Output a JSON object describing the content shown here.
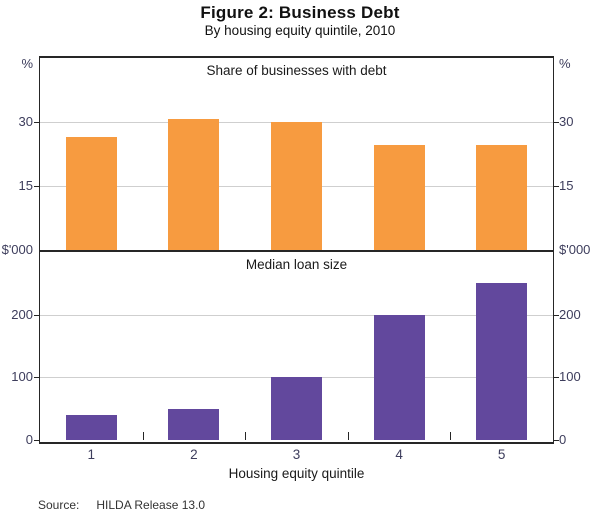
{
  "title": "Figure 2: Business Debt",
  "subtitle": "By housing equity quintile, 2010",
  "xlabel": "Housing equity quintile",
  "source": {
    "label": "Source:",
    "text": "HILDA Release 13.0"
  },
  "colors": {
    "top_bar": "#f79b40",
    "bottom_bar": "#62489d",
    "gridline": "#cfcfcf",
    "frame": "#262626",
    "tick_label": "#3d3d5c"
  },
  "chart_data": [
    {
      "type": "bar",
      "panel_title": "Share of businesses with debt",
      "unit_left": "%",
      "unit_right": "%",
      "categories": [
        "1",
        "2",
        "3",
        "4",
        "5"
      ],
      "values": [
        26.5,
        30.7,
        30,
        24.5,
        24.7
      ],
      "ylim": [
        0,
        45
      ],
      "yticks": [
        15,
        30
      ],
      "grid": true,
      "legend": "none",
      "bar_color_key": "top_bar"
    },
    {
      "type": "bar",
      "panel_title": "Median loan size",
      "unit_left": "$'000",
      "unit_right": "$'000",
      "categories": [
        "1",
        "2",
        "3",
        "4",
        "5"
      ],
      "values": [
        40,
        50,
        100,
        200,
        250
      ],
      "ylim": [
        0,
        300
      ],
      "yticks": [
        0,
        100,
        200
      ],
      "grid": true,
      "legend": "none",
      "bar_color_key": "bottom_bar"
    }
  ]
}
